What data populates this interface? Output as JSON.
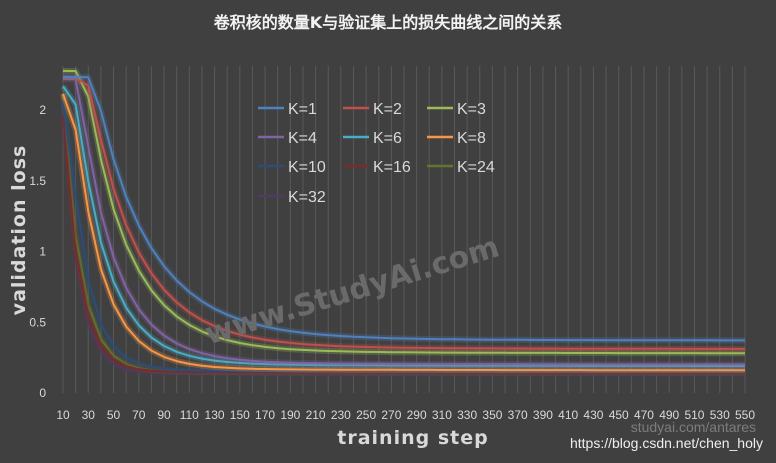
{
  "chart_data": {
    "type": "line",
    "title": "卷积核的数量K与验证集上的损失曲线之间的关系",
    "xlabel": "training step",
    "ylabel": "validation loss",
    "x": [
      10,
      20,
      30,
      40,
      50,
      60,
      70,
      80,
      90,
      100,
      110,
      120,
      130,
      140,
      150,
      160,
      170,
      180,
      190,
      200,
      210,
      220,
      230,
      240,
      250,
      260,
      270,
      280,
      290,
      300,
      310,
      320,
      330,
      340,
      350,
      360,
      370,
      380,
      390,
      400,
      410,
      420,
      430,
      440,
      450,
      460,
      470,
      480,
      490,
      500,
      510,
      520,
      530,
      540,
      550
    ],
    "x_tick_labels": [
      "10",
      "30",
      "50",
      "70",
      "90",
      "110",
      "130",
      "150",
      "170",
      "190",
      "210",
      "230",
      "250",
      "270",
      "290",
      "310",
      "330",
      "350",
      "370",
      "390",
      "410",
      "430",
      "450",
      "470",
      "490",
      "510",
      "530",
      "550"
    ],
    "y_tick_labels": [
      "0",
      "0.5",
      "1",
      "1.5",
      "2"
    ],
    "ylim": [
      0,
      2.35
    ],
    "grid": "vertical",
    "legend_position": "top-center",
    "series": [
      {
        "name": "K=1",
        "color": "#4f81bd",
        "y0": 2.2,
        "final": 0.37,
        "tau": 45,
        "delay": 22
      },
      {
        "name": "K=2",
        "color": "#c0504d",
        "y0": 2.2,
        "final": 0.31,
        "tau": 40,
        "delay": 18
      },
      {
        "name": "K=3",
        "color": "#9bbb59",
        "y0": 2.25,
        "final": 0.28,
        "tau": 36,
        "delay": 15
      },
      {
        "name": "K=4",
        "color": "#8064a2",
        "y0": 2.2,
        "final": 0.2,
        "tau": 30,
        "delay": 10
      },
      {
        "name": "K=6",
        "color": "#4bacc6",
        "y0": 2.15,
        "final": 0.19,
        "tau": 27,
        "delay": 7
      },
      {
        "name": "K=8",
        "color": "#f79646",
        "y0": 2.1,
        "final": 0.16,
        "tau": 24,
        "delay": 5
      },
      {
        "name": "K=10",
        "color": "#2c4d75",
        "y0": 2.05,
        "final": 0.15,
        "tau": 16,
        "delay": 1
      },
      {
        "name": "K=16",
        "color": "#772c2a",
        "y0": 1.95,
        "final": 0.14,
        "tau": 13,
        "delay": 0
      },
      {
        "name": "K=24",
        "color": "#5f7530",
        "y0": 2.1,
        "final": 0.14,
        "tau": 14,
        "delay": 0
      },
      {
        "name": "K=32",
        "color": "#4d3b62",
        "y0": 2.0,
        "final": 0.13,
        "tau": 12,
        "delay": 0
      }
    ]
  },
  "watermark": "www.StudyAi.com",
  "credit": "https://blog.csdn.net/chen_holy",
  "credit_faint": "studyai.com/antares"
}
